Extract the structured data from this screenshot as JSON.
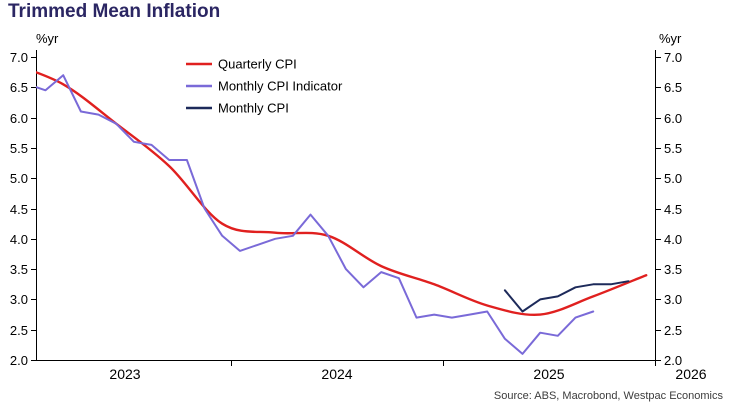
{
  "title": "Trimmed Mean Inflation",
  "axis_unit_left": "%yr",
  "axis_unit_right": "%yr",
  "source": "Source: ABS, Macrobond, Westpac Economics",
  "colors": {
    "title": "#2b2663",
    "axis": "#000000",
    "tick_text": "#000000",
    "legend_text": "#000000",
    "source_text": "#3c3c3c",
    "quarterly_cpi": "#e0201f",
    "monthly_cpi_indicator": "#7a6ad8",
    "monthly_cpi": "#1d2a5a"
  },
  "chart_data": {
    "type": "line",
    "title": "Trimmed Mean Inflation",
    "y_axis_unit": "%yr",
    "ylim": [
      2.0,
      7.0
    ],
    "y_ticks": [
      "7.0",
      "6.5",
      "6.0",
      "5.5",
      "5.0",
      "4.5",
      "4.0",
      "3.5",
      "3.0",
      "2.5",
      "2.0"
    ],
    "xlim": [
      2023.08,
      2026.0
    ],
    "x_tick_marks": [
      2024,
      2025,
      2026
    ],
    "x_labels": [
      {
        "text": "2023",
        "x": 2023.5
      },
      {
        "text": "2024",
        "x": 2024.5
      },
      {
        "text": "2025",
        "x": 2025.5
      },
      {
        "text": "2026",
        "x": 2026.17
      }
    ],
    "grid": false,
    "legend_position": "inside-top-left",
    "series": [
      {
        "name": "Quarterly CPI",
        "color_key": "quarterly_cpi",
        "smooth": true,
        "width": 2.4,
        "x": [
          2022.9583,
          2023.2083,
          2023.4583,
          2023.7083,
          2023.9583,
          2024.2083,
          2024.4583,
          2024.7083,
          2024.9583,
          2025.2083,
          2025.4583,
          2025.7083,
          2025.9583
        ],
        "values": [
          6.9,
          6.55,
          5.9,
          5.2,
          4.25,
          4.1,
          4.05,
          3.55,
          3.25,
          2.9,
          2.75,
          3.05,
          3.4
        ]
      },
      {
        "name": "Monthly CPI Indicator",
        "color_key": "monthly_cpi_indicator",
        "smooth": false,
        "width": 2,
        "x": [
          2023.0417,
          2023.125,
          2023.2083,
          2023.2917,
          2023.375,
          2023.4583,
          2023.5417,
          2023.625,
          2023.7083,
          2023.7917,
          2023.875,
          2023.9583,
          2024.0417,
          2024.125,
          2024.2083,
          2024.2917,
          2024.375,
          2024.4583,
          2024.5417,
          2024.625,
          2024.7083,
          2024.7917,
          2024.875,
          2024.9583,
          2025.0417,
          2025.125,
          2025.2083,
          2025.2917,
          2025.375,
          2025.4583,
          2025.5417,
          2025.625,
          2025.7083
        ],
        "values": [
          6.55,
          6.45,
          6.7,
          6.1,
          6.05,
          5.9,
          5.6,
          5.55,
          5.3,
          5.3,
          4.5,
          4.05,
          3.8,
          3.9,
          4.0,
          4.05,
          4.4,
          4.05,
          3.5,
          3.2,
          3.45,
          3.35,
          2.7,
          2.75,
          2.7,
          2.75,
          2.8,
          2.35,
          2.1,
          2.45,
          2.4,
          2.7,
          2.8
        ]
      },
      {
        "name": "Monthly CPI",
        "color_key": "monthly_cpi",
        "smooth": false,
        "width": 2,
        "x": [
          2025.2917,
          2025.375,
          2025.4583,
          2025.5417,
          2025.625,
          2025.7083,
          2025.7917,
          2025.875
        ],
        "values": [
          3.15,
          2.8,
          3.0,
          3.05,
          3.2,
          3.25,
          3.25,
          3.3
        ]
      }
    ]
  }
}
